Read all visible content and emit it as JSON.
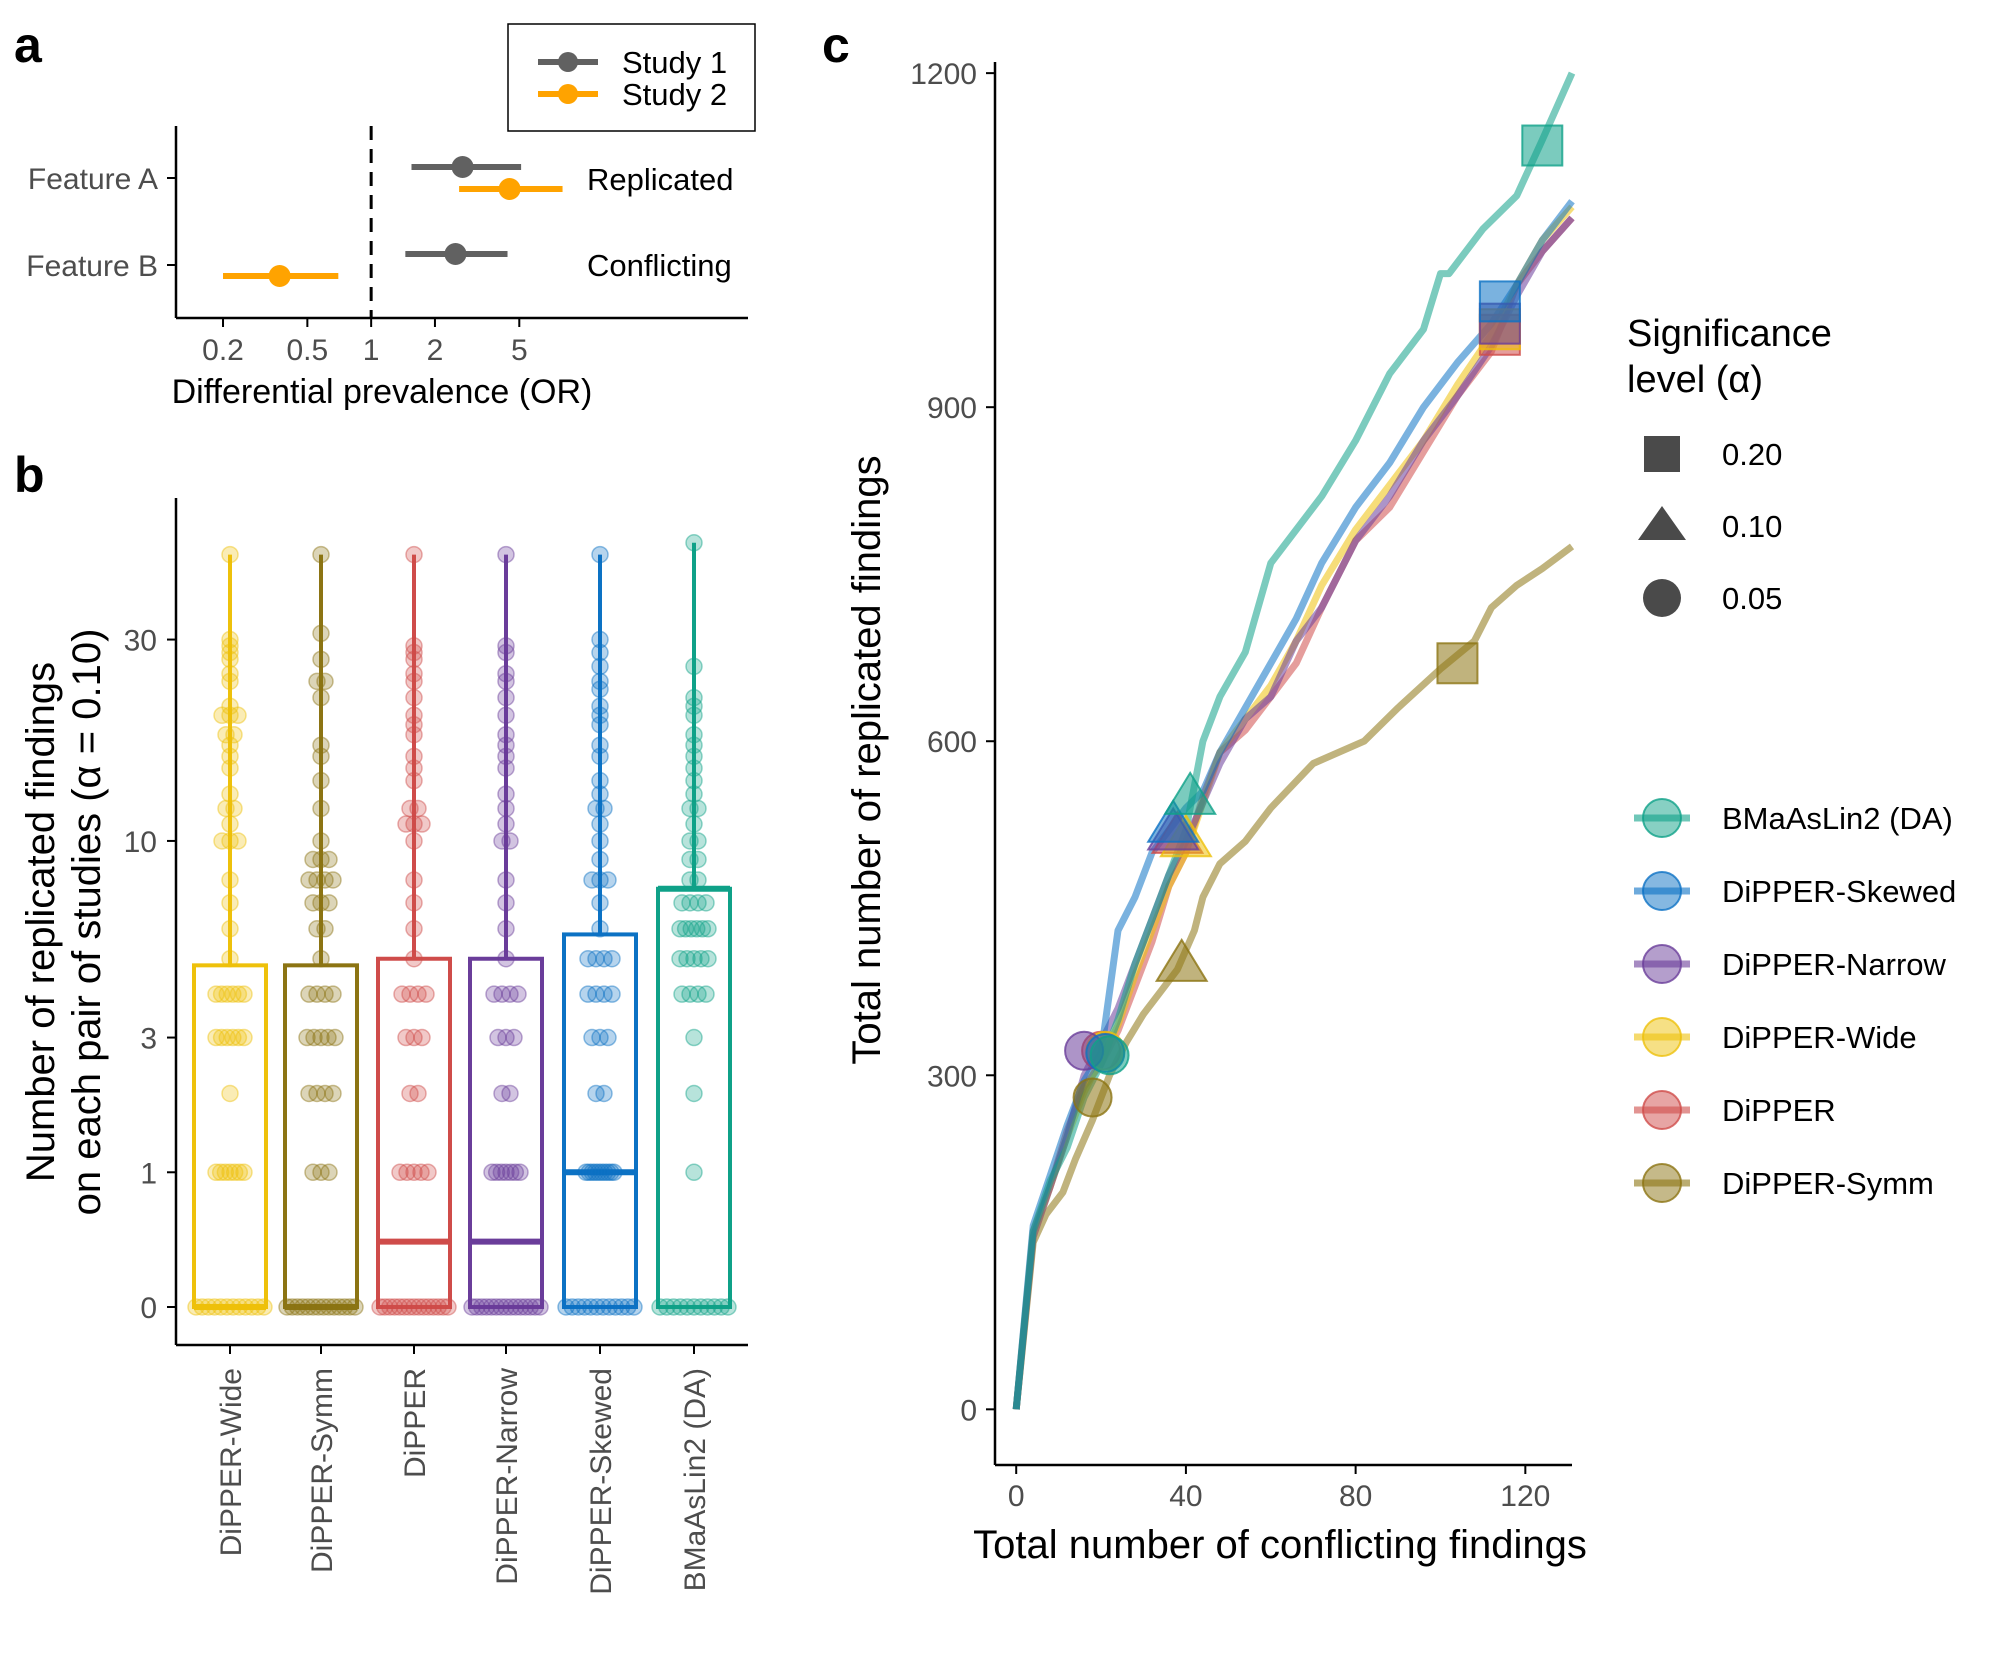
{
  "panels": {
    "a": "a",
    "b": "b",
    "c": "c"
  },
  "colors": {
    "study1": "#616161",
    "study2": "#ffa300",
    "DiPPER-Wide": "#eec10b",
    "DiPPER-Symm": "#8c7413",
    "DiPPER": "#cf4c4a",
    "DiPPER-Narrow": "#6a3d9a",
    "DiPPER-Skewed": "#0c72c4",
    "BMaAsLin2 (DA)": "#0fa188",
    "axis": "#000000",
    "tick_text": "#4d4d4d"
  },
  "chart_data": [
    {
      "id": "a",
      "type": "forest",
      "xlabel": "Differential prevalence (OR)",
      "xscale": "log",
      "xlim": [
        0.12,
        60
      ],
      "xticks": [
        0.2,
        0.5,
        1,
        2,
        5
      ],
      "xtick_labels": [
        "0.2",
        "0.5",
        "1",
        "2",
        "5"
      ],
      "reference_line": 1,
      "categories": [
        "Feature A",
        "Feature B"
      ],
      "legend": {
        "entries": [
          "Study 1",
          "Study 2"
        ],
        "position": "top-right"
      },
      "series": [
        {
          "name": "Study 1",
          "points": [
            {
              "feature": "Feature A",
              "or": 2.7,
              "low": 1.55,
              "high": 5.1
            },
            {
              "feature": "Feature B",
              "or": 2.5,
              "low": 1.45,
              "high": 4.4
            }
          ]
        },
        {
          "name": "Study 2",
          "points": [
            {
              "feature": "Feature A",
              "or": 4.5,
              "low": 2.6,
              "high": 8.0
            },
            {
              "feature": "Feature B",
              "or": 0.37,
              "low": 0.2,
              "high": 0.7
            }
          ]
        }
      ],
      "annotations": [
        {
          "feature": "Feature A",
          "text": "Replicated"
        },
        {
          "feature": "Feature B",
          "text": "Conflicting"
        }
      ]
    },
    {
      "id": "b",
      "type": "bar",
      "ylabel_line1": "Number of replicated findings",
      "ylabel_line2": "on each pair of studies (α = 0.10)",
      "yscale": "pseudo-log",
      "yticks": [
        0,
        1,
        3,
        10,
        30
      ],
      "ytick_labels": [
        "0",
        "1",
        "3",
        "10",
        "30"
      ],
      "ylim": [
        0,
        60
      ],
      "categories": [
        "DiPPER-Wide",
        "DiPPER-Symm",
        "DiPPER",
        "DiPPER-Narrow",
        "DiPPER-Skewed",
        "BMaAsLin2 (DA)"
      ],
      "mean": [
        4.8,
        4.8,
        5.0,
        5.0,
        5.8,
        7.6
      ],
      "median": [
        0,
        0,
        0.4,
        0.4,
        1,
        7.6
      ],
      "max": [
        47,
        47,
        47,
        47,
        47,
        50
      ],
      "points": [
        [
          0,
          0,
          0,
          0,
          0,
          0,
          0,
          0,
          0,
          0,
          0,
          0,
          1,
          1,
          1,
          1,
          1,
          1,
          1,
          2,
          3,
          3,
          3,
          3,
          3,
          3,
          4,
          4,
          4,
          4,
          4,
          4,
          5,
          6,
          7,
          8,
          10,
          10,
          10,
          11,
          12,
          12,
          13,
          15,
          16,
          17,
          18,
          18,
          20,
          20,
          20,
          21,
          24,
          25,
          27,
          28,
          29,
          30,
          47
        ],
        [
          0,
          0,
          0,
          0,
          0,
          0,
          0,
          0,
          0,
          0,
          0,
          0,
          0,
          0,
          1,
          1,
          1,
          2,
          2,
          2,
          2,
          3,
          3,
          3,
          3,
          3,
          4,
          4,
          4,
          4,
          5,
          6,
          6,
          7,
          7,
          7,
          8,
          8,
          8,
          8,
          9,
          9,
          9,
          10,
          12,
          14,
          16,
          17,
          22,
          24,
          24,
          27,
          31,
          47
        ],
        [
          0,
          0,
          0,
          0,
          0,
          0,
          0,
          0,
          0,
          0,
          0,
          0,
          0,
          0,
          0,
          1,
          1,
          1,
          1,
          1,
          2,
          2,
          3,
          3,
          3,
          4,
          4,
          4,
          4,
          5,
          6,
          7,
          8,
          10,
          11,
          11,
          11,
          12,
          12,
          14,
          15,
          16,
          18,
          19,
          20,
          22,
          24,
          25,
          27,
          28,
          29,
          47
        ],
        [
          0,
          0,
          0,
          0,
          0,
          0,
          0,
          0,
          0,
          0,
          0,
          0,
          0,
          0,
          0,
          1,
          1,
          1,
          1,
          1,
          1,
          1,
          2,
          2,
          3,
          3,
          3,
          4,
          4,
          4,
          4,
          5,
          6,
          7,
          8,
          10,
          10,
          11,
          12,
          13,
          15,
          16,
          17,
          18,
          20,
          22,
          24,
          25,
          28,
          29,
          47
        ],
        [
          0,
          0,
          0,
          0,
          0,
          0,
          0,
          0,
          0,
          0,
          0,
          0,
          1,
          1,
          1,
          1,
          1,
          1,
          1,
          1,
          1,
          1,
          2,
          2,
          3,
          3,
          3,
          4,
          4,
          4,
          4,
          5,
          5,
          5,
          5,
          6,
          7,
          8,
          8,
          8,
          9,
          10,
          11,
          12,
          12,
          13,
          14,
          16,
          17,
          19,
          20,
          21,
          23,
          24,
          26,
          28,
          30,
          47
        ],
        [
          0,
          0,
          0,
          0,
          0,
          0,
          0,
          0,
          0,
          0,
          0,
          1,
          2,
          3,
          4,
          4,
          4,
          4,
          5,
          5,
          5,
          5,
          5,
          6,
          6,
          6,
          6,
          6,
          6,
          7,
          7,
          7,
          7,
          8,
          8,
          9,
          9,
          10,
          10,
          11,
          12,
          12,
          13,
          14,
          15,
          16,
          17,
          18,
          20,
          21,
          22,
          26,
          50
        ]
      ]
    },
    {
      "id": "c",
      "type": "line",
      "xlabel": "Total number of conflicting findings",
      "ylabel": "Total number of replicated findings",
      "xlim": [
        -5,
        131
      ],
      "ylim": [
        -50,
        1210
      ],
      "xticks": [
        0,
        40,
        80,
        120
      ],
      "yticks": [
        0,
        300,
        600,
        900,
        1200
      ],
      "legend_shape_title_line1": "Significance",
      "legend_shape_title_line2": "level (α)",
      "legend_shape": [
        {
          "shape": "square",
          "label": "0.20"
        },
        {
          "shape": "triangle",
          "label": "0.10"
        },
        {
          "shape": "circle",
          "label": "0.05"
        }
      ],
      "legend_order": [
        "BMaAsLin2 (DA)",
        "DiPPER-Skewed",
        "DiPPER-Narrow",
        "DiPPER-Wide",
        "DiPPER",
        "DiPPER-Symm"
      ],
      "series": [
        {
          "name": "DiPPER-Symm",
          "x": [
            0,
            4,
            7,
            11,
            14,
            18,
            22,
            26,
            30,
            34,
            38,
            42,
            44,
            48,
            54,
            60,
            70,
            82,
            90,
            100,
            108,
            112,
            118,
            124,
            131
          ],
          "y": [
            0,
            150,
            175,
            195,
            225,
            260,
            300,
            330,
            355,
            375,
            395,
            430,
            460,
            490,
            510,
            540,
            580,
            600,
            630,
            665,
            690,
            720,
            740,
            755,
            775
          ],
          "markers": [
            {
              "alpha": "0.05",
              "x": 18,
              "y": 280
            },
            {
              "alpha": "0.10",
              "x": 39,
              "y": 400
            },
            {
              "alpha": "0.20",
              "x": 104,
              "y": 670
            }
          ]
        },
        {
          "name": "DiPPER",
          "x": [
            0,
            4,
            8,
            12,
            16,
            20,
            24,
            28,
            32,
            36,
            40,
            44,
            48,
            54,
            60,
            66,
            72,
            80,
            88,
            96,
            104,
            112,
            118,
            124,
            131
          ],
          "y": [
            0,
            160,
            200,
            250,
            290,
            310,
            340,
            380,
            420,
            470,
            500,
            550,
            590,
            610,
            640,
            670,
            720,
            780,
            810,
            860,
            910,
            950,
            1010,
            1040,
            1070
          ],
          "markers": [
            {
              "alpha": "0.05",
              "x": 20,
              "y": 322
            },
            {
              "alpha": "0.10",
              "x": 38,
              "y": 515
            },
            {
              "alpha": "0.20",
              "x": 114,
              "y": 965
            }
          ]
        },
        {
          "name": "DiPPER-Wide",
          "x": [
            0,
            4,
            8,
            12,
            16,
            20,
            24,
            28,
            32,
            36,
            40,
            44,
            48,
            54,
            60,
            66,
            72,
            80,
            88,
            96,
            104,
            112,
            118,
            124,
            131
          ],
          "y": [
            0,
            155,
            200,
            245,
            285,
            315,
            345,
            390,
            430,
            470,
            500,
            545,
            590,
            620,
            650,
            690,
            740,
            790,
            830,
            870,
            920,
            965,
            1010,
            1050,
            1080
          ],
          "markers": [
            {
              "alpha": "0.05",
              "x": 21,
              "y": 322
            },
            {
              "alpha": "0.10",
              "x": 40,
              "y": 512
            },
            {
              "alpha": "0.20",
              "x": 114,
              "y": 970
            }
          ]
        },
        {
          "name": "DiPPER-Narrow",
          "x": [
            0,
            4,
            8,
            12,
            16,
            20,
            24,
            28,
            32,
            36,
            40,
            44,
            48,
            54,
            60,
            66,
            72,
            80,
            88,
            96,
            104,
            112,
            118,
            124,
            131
          ],
          "y": [
            0,
            155,
            200,
            245,
            300,
            330,
            360,
            400,
            440,
            480,
            510,
            545,
            580,
            620,
            640,
            690,
            720,
            780,
            820,
            870,
            910,
            955,
            1000,
            1040,
            1070
          ],
          "markers": [
            {
              "alpha": "0.05",
              "x": 16,
              "y": 322
            },
            {
              "alpha": "0.10",
              "x": 37,
              "y": 518
            },
            {
              "alpha": "0.20",
              "x": 114,
              "y": 975
            }
          ]
        },
        {
          "name": "DiPPER-Skewed",
          "x": [
            0,
            4,
            8,
            12,
            16,
            20,
            24,
            28,
            32,
            36,
            40,
            44,
            48,
            54,
            60,
            66,
            72,
            80,
            88,
            96,
            104,
            112,
            118,
            124,
            131
          ],
          "y": [
            0,
            165,
            210,
            255,
            295,
            320,
            430,
            460,
            500,
            520,
            540,
            555,
            590,
            630,
            670,
            710,
            760,
            810,
            850,
            900,
            940,
            975,
            1010,
            1050,
            1085
          ],
          "markers": [
            {
              "alpha": "0.05",
              "x": 21,
              "y": 320
            },
            {
              "alpha": "0.10",
              "x": 37,
              "y": 525
            },
            {
              "alpha": "0.20",
              "x": 114,
              "y": 995
            }
          ]
        },
        {
          "name": "BMaAsLin2 (DA)",
          "x": [
            0,
            4,
            8,
            12,
            16,
            20,
            24,
            28,
            32,
            36,
            40,
            44,
            48,
            54,
            60,
            66,
            72,
            80,
            88,
            96,
            100,
            102,
            110,
            118,
            124,
            131
          ],
          "y": [
            0,
            160,
            205,
            235,
            280,
            310,
            350,
            400,
            440,
            480,
            520,
            600,
            640,
            680,
            760,
            790,
            820,
            870,
            930,
            970,
            1020,
            1020,
            1060,
            1090,
            1140,
            1200
          ],
          "markers": [
            {
              "alpha": "0.05",
              "x": 22,
              "y": 318
            },
            {
              "alpha": "0.10",
              "x": 41,
              "y": 550
            },
            {
              "alpha": "0.20",
              "x": 124,
              "y": 1135
            }
          ]
        }
      ]
    }
  ]
}
